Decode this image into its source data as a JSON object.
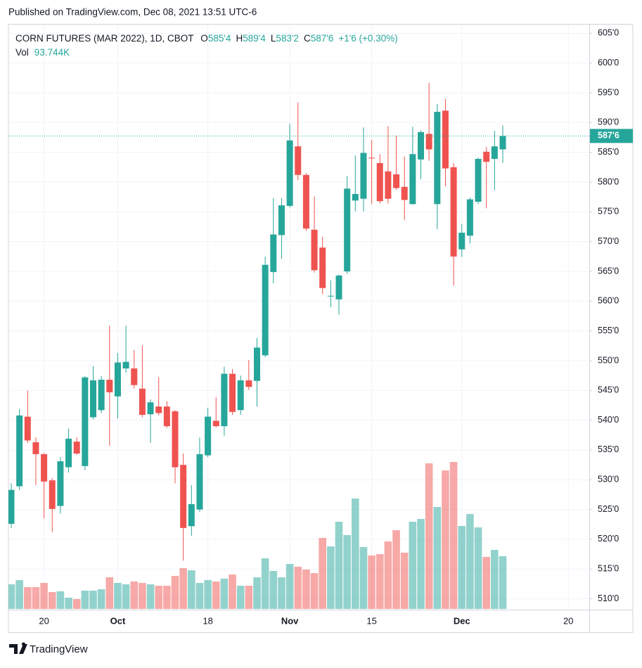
{
  "page": {
    "published": "Published on TradingView.com, Dec 08, 2021 13:51 UTC-6",
    "brand": "TradingView"
  },
  "legend": {
    "symbol": "CORN FUTURES (MAR 2022), 1D, CBOT",
    "fields": [
      [
        "O",
        "585'4"
      ],
      [
        "H",
        "589'4"
      ],
      [
        "L",
        "583'2"
      ],
      [
        "C",
        "587'6"
      ]
    ],
    "change": "+1'6 (+0.30%)",
    "vol_title": "Vol",
    "vol_value": "93.744K",
    "last_price_label": "587'6"
  },
  "chart_data": {
    "type": "candlestick",
    "categories": [
      null,
      null,
      null,
      null,
      "20",
      null,
      null,
      null,
      null,
      null,
      null,
      null,
      null,
      "Oct",
      null,
      null,
      null,
      null,
      null,
      null,
      null,
      null,
      null,
      null,
      "18",
      null,
      null,
      null,
      null,
      null,
      null,
      null,
      null,
      null,
      "Nov",
      null,
      null,
      null,
      null,
      null,
      null,
      null,
      null,
      null,
      "15",
      null,
      null,
      null,
      null,
      null,
      null,
      null,
      null,
      null,
      null,
      "Dec",
      null,
      null,
      null,
      null,
      null,
      null,
      null,
      null,
      null,
      null,
      null,
      null,
      "20"
    ],
    "open": [
      522.6,
      528.9,
      540.6,
      536.3,
      534.3,
      529.9,
      525.6,
      532.1,
      536.4,
      532.3,
      540.5,
      541.7,
      546.8,
      544.0,
      548.7,
      548.7,
      545.3,
      541.0,
      542.3,
      542.3,
      541.5,
      532.5,
      522.2,
      525.0,
      534.1,
      539.9,
      539.0,
      547.8,
      541.7,
      546.7,
      546.6,
      550.9,
      564.9,
      571.1,
      576.0,
      586.0,
      581.2,
      572.0,
      569.0,
      560.8,
      560.3,
      565.0,
      576.9,
      577.2,
      584.1,
      583.2,
      581.8,
      581.3,
      579.2,
      576.3,
      583.8,
      588.1,
      576.3,
      592.0,
      582.5,
      568.7,
      571.0,
      576.7,
      585.1,
      583.9,
      585.5,
      null,
      null,
      null,
      null,
      null,
      null,
      null,
      null
    ],
    "high": [
      529.4,
      541.9,
      545.0,
      537.1,
      534.5,
      530.3,
      533.8,
      538.6,
      537.1,
      547.4,
      549.1,
      547.4,
      555.9,
      551.3,
      555.9,
      551.8,
      552.6,
      543.5,
      547.2,
      543.2,
      541.7,
      534.4,
      529.1,
      537.1,
      542.1,
      543.9,
      549.0,
      548.6,
      547.5,
      550.1,
      553.8,
      567.5,
      577.3,
      577.3,
      589.8,
      593.4,
      581.5,
      577.6,
      570.8,
      563.5,
      564.5,
      581.0,
      584.5,
      589.2,
      587.1,
      584.7,
      589.4,
      587.8,
      584.3,
      589.3,
      588.7,
      596.7,
      593.1,
      594.0,
      583.2,
      573.0,
      577.4,
      584.1,
      585.9,
      588.6,
      589.5,
      null,
      null,
      null,
      null,
      null,
      null,
      null,
      null
    ],
    "low": [
      521.9,
      528.3,
      536.2,
      529.1,
      523.5,
      521.2,
      524.3,
      531.2,
      534.2,
      531.6,
      540.1,
      541.2,
      535.7,
      540.3,
      548.0,
      545.3,
      540.5,
      536.2,
      540.8,
      538.7,
      529.4,
      516.4,
      520.6,
      524.6,
      533.8,
      538.8,
      537.4,
      540.9,
      540.9,
      545.1,
      542.3,
      550.6,
      563.0,
      567.1,
      575.7,
      580.3,
      571.8,
      564.8,
      561.2,
      559.0,
      557.7,
      564.6,
      575.1,
      575.1,
      576.3,
      576.4,
      576.4,
      578.7,
      573.6,
      576.2,
      580.5,
      583.6,
      572.1,
      579.3,
      562.6,
      567.4,
      569.7,
      576.3,
      575.6,
      578.6,
      583.25,
      null,
      null,
      null,
      null,
      null,
      null,
      null,
      null
    ],
    "close": [
      528.3,
      540.8,
      536.6,
      534.3,
      529.7,
      525.1,
      533.1,
      536.9,
      534.4,
      547.2,
      546.7,
      546.8,
      544.7,
      549.7,
      549.8,
      545.9,
      540.9,
      543.0,
      541.2,
      539.0,
      532.1,
      521.9,
      525.9,
      534.3,
      540.6,
      539.0,
      547.8,
      541.4,
      546.7,
      545.6,
      552.2,
      566.1,
      571.2,
      576.1,
      587.0,
      581.2,
      572.2,
      565.2,
      562.2,
      560.9,
      564.3,
      578.9,
      578.0,
      584.9,
      584.0,
      576.8,
      577.2,
      579.0,
      577.0,
      584.7,
      588.4,
      585.5,
      591.8,
      582.3,
      567.5,
      571.5,
      577.1,
      583.9,
      583.4,
      586.0,
      587.75,
      null,
      null,
      null,
      null,
      null,
      null,
      null,
      null
    ],
    "volume": [
      43750,
      51250,
      38750,
      38750,
      46250,
      30000,
      31250,
      20000,
      17500,
      32500,
      32500,
      35000,
      56250,
      46250,
      43750,
      48750,
      46250,
      43750,
      41250,
      41250,
      58750,
      72500,
      68750,
      46250,
      51250,
      48750,
      53750,
      61250,
      41250,
      41250,
      56250,
      90000,
      67500,
      56250,
      80000,
      75000,
      70000,
      63750,
      126250,
      111250,
      155000,
      131250,
      196250,
      110000,
      95000,
      97500,
      120000,
      140000,
      100000,
      155000,
      160000,
      258750,
      181250,
      246250,
      261250,
      147500,
      168750,
      145000,
      92500,
      105000,
      93744,
      null,
      null,
      null,
      null,
      null,
      null,
      null,
      null
    ],
    "up_color": "#26a69a",
    "down_color": "#ef5350",
    "ylim": [
      508.3,
      606.1
    ],
    "yticks": [
      {
        "value": 510,
        "label": "510'0"
      },
      {
        "value": 515,
        "label": "515'0"
      },
      {
        "value": 520,
        "label": "520'0"
      },
      {
        "value": 525,
        "label": "525'0"
      },
      {
        "value": 530,
        "label": "530'0"
      },
      {
        "value": 535,
        "label": "535'0"
      },
      {
        "value": 540,
        "label": "540'0"
      },
      {
        "value": 545,
        "label": "545'0"
      },
      {
        "value": 550,
        "label": "550'0"
      },
      {
        "value": 555,
        "label": "555'0"
      },
      {
        "value": 560,
        "label": "560'0"
      },
      {
        "value": 565,
        "label": "565'0"
      },
      {
        "value": 570,
        "label": "570'0"
      },
      {
        "value": 575,
        "label": "575'0"
      },
      {
        "value": 580,
        "label": "580'0"
      },
      {
        "value": 585,
        "label": "585'0"
      },
      {
        "value": 590,
        "label": "590'0"
      },
      {
        "value": 595,
        "label": "595'0"
      },
      {
        "value": 600,
        "label": "600'0"
      },
      {
        "value": 605,
        "label": "605'0"
      }
    ],
    "grid": true
  }
}
